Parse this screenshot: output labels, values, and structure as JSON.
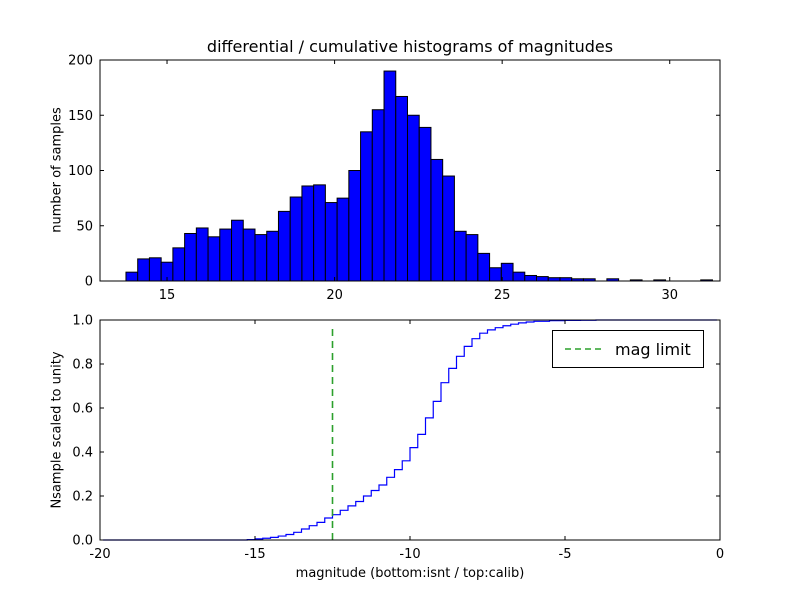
{
  "figure_title": "differential / cumulative histograms of magnitudes",
  "colors": {
    "background": "#ffffff",
    "bar_fill": "#0000ff",
    "bar_edge": "#000000",
    "step_line": "#0000ff",
    "mag_limit_green": "#2ca02c",
    "axis": "#000000"
  },
  "chart_data": [
    {
      "type": "bar",
      "title": "differential / cumulative histograms of magnitudes",
      "xlabel": "",
      "ylabel": "number of samples",
      "xlim": [
        13,
        31.5
      ],
      "ylim": [
        0,
        200
      ],
      "xticks": [
        15,
        20,
        25,
        30
      ],
      "yticks": [
        0,
        50,
        100,
        150,
        200
      ],
      "grid": false,
      "bin_width": 0.35,
      "bin_centers": [
        13.95,
        14.3,
        14.65,
        15.0,
        15.35,
        15.7,
        16.05,
        16.4,
        16.75,
        17.1,
        17.45,
        17.8,
        18.15,
        18.5,
        18.85,
        19.2,
        19.55,
        19.9,
        20.25,
        20.6,
        20.95,
        21.3,
        21.65,
        22.0,
        22.35,
        22.7,
        23.05,
        23.4,
        23.75,
        24.1,
        24.45,
        24.8,
        25.15,
        25.5,
        25.85,
        26.2,
        26.55,
        26.9,
        27.25,
        27.6,
        28.3,
        29.0,
        29.7,
        31.1
      ],
      "values": [
        8,
        20,
        21,
        17,
        30,
        43,
        48,
        40,
        47,
        55,
        47,
        42,
        45,
        63,
        76,
        86,
        87,
        71,
        75,
        100,
        135,
        155,
        190,
        167,
        150,
        139,
        110,
        95,
        45,
        42,
        25,
        12,
        16,
        8,
        5,
        4,
        3,
        3,
        2,
        2,
        2,
        1,
        1,
        1
      ]
    },
    {
      "type": "line",
      "step": true,
      "title": "",
      "xlabel": "magnitude (bottom:isnt / top:calib)",
      "ylabel": "Nsample scaled to unity",
      "xlim": [
        -20,
        0
      ],
      "ylim": [
        0,
        1
      ],
      "xticks": [
        -20,
        -15,
        -10,
        -5,
        0
      ],
      "yticks": [
        0.0,
        0.2,
        0.4,
        0.6,
        0.8,
        1.0
      ],
      "grid": false,
      "x": [
        -19.9,
        -15.25,
        -15.0,
        -14.75,
        -14.5,
        -14.25,
        -14.0,
        -13.75,
        -13.5,
        -13.25,
        -13.0,
        -12.75,
        -12.5,
        -12.25,
        -12.0,
        -11.75,
        -11.5,
        -11.25,
        -11.0,
        -10.75,
        -10.5,
        -10.25,
        -10.0,
        -9.75,
        -9.5,
        -9.25,
        -9.0,
        -8.75,
        -8.5,
        -8.25,
        -8.0,
        -7.75,
        -7.5,
        -7.25,
        -7.0,
        -6.75,
        -6.5,
        -6.25,
        -6.0,
        -5.5,
        -5.0,
        -4.5,
        -4.0,
        -0.1
      ],
      "y": [
        0.0,
        0.002,
        0.005,
        0.008,
        0.012,
        0.018,
        0.025,
        0.035,
        0.05,
        0.065,
        0.08,
        0.1,
        0.115,
        0.135,
        0.155,
        0.175,
        0.2,
        0.225,
        0.25,
        0.285,
        0.32,
        0.36,
        0.42,
        0.48,
        0.555,
        0.63,
        0.715,
        0.78,
        0.835,
        0.88,
        0.915,
        0.94,
        0.955,
        0.965,
        0.974,
        0.981,
        0.987,
        0.991,
        0.994,
        0.997,
        0.998,
        0.999,
        1.0,
        1.0
      ],
      "vline": {
        "x": -12.5,
        "ymin": 0.0,
        "ymax": 0.97,
        "style": "dashed",
        "color_name": "green"
      },
      "legend": {
        "label": "mag limit",
        "position": "upper right"
      }
    }
  ]
}
